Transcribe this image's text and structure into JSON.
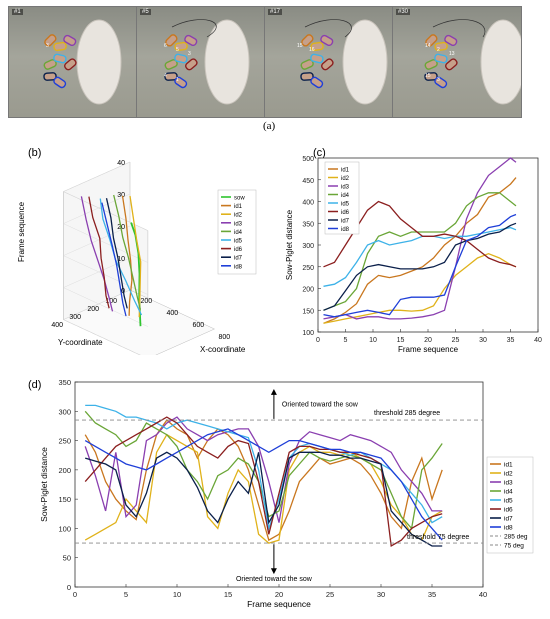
{
  "panel_labels": {
    "a": "(a)",
    "b": "(b)",
    "c": "(c)",
    "d": "(d)"
  },
  "frames": [
    {
      "label": "#1",
      "piglet_labels": [
        "3"
      ]
    },
    {
      "label": "#5",
      "piglet_labels": [
        "6",
        "5",
        "3",
        "4",
        "1"
      ]
    },
    {
      "label": "#17",
      "piglet_labels": [
        "15",
        "16"
      ]
    },
    {
      "label": "#30",
      "piglet_labels": [
        "14",
        "2",
        "13",
        "15",
        "3"
      ]
    }
  ],
  "colors": {
    "sow": "#2fc42f",
    "id1": "#c9771f",
    "id2": "#e0b21a",
    "id3": "#8a3fb0",
    "id4": "#6aa637",
    "id5": "#3db2e8",
    "id6": "#8b1f1f",
    "id7": "#0a1f4a",
    "id8": "#1f3fd8",
    "threshold": "#888888"
  },
  "chart_data": [
    {
      "panel": "(b)",
      "type": "line",
      "projection": "3d",
      "xlabel": "X-coordinate",
      "ylabel": "Y-coordinate",
      "zlabel": "Frame sequence",
      "xticks": [
        "200",
        "400",
        "600",
        "800"
      ],
      "yticks": [
        "100",
        "200",
        "300",
        "400"
      ],
      "zticks": [
        "0",
        "10",
        "20",
        "30",
        "40"
      ],
      "legend_position": "right",
      "series": [
        {
          "name": "sow",
          "color_key": "sow",
          "points": [
            [
              560,
              340,
              36
            ],
            [
              600,
              345,
              33
            ],
            [
              630,
              350,
              28
            ],
            [
              645,
              355,
              22
            ],
            [
              650,
              360,
              15
            ],
            [
              655,
              360,
              10
            ],
            [
              660,
              360,
              6
            ]
          ]
        },
        {
          "name": "id1",
          "color_key": "id1",
          "points": [
            [
              300,
              200,
              36
            ],
            [
              340,
              210,
              30
            ],
            [
              370,
              220,
              24
            ],
            [
              390,
              220,
              18
            ],
            [
              400,
              220,
              12
            ],
            [
              410,
              240,
              6
            ],
            [
              420,
              250,
              2
            ]
          ]
        },
        {
          "name": "id2",
          "color_key": "id2",
          "points": [
            [
              330,
              180,
              36
            ],
            [
              370,
              190,
              30
            ],
            [
              410,
              200,
              24
            ],
            [
              440,
              200,
              18
            ],
            [
              450,
              210,
              12
            ],
            [
              460,
              220,
              6
            ],
            [
              470,
              230,
              2
            ]
          ]
        },
        {
          "name": "id3",
          "color_key": "id3",
          "points": [
            [
              150,
              320,
              36
            ],
            [
              200,
              330,
              30
            ],
            [
              240,
              330,
              24
            ],
            [
              280,
              320,
              18
            ],
            [
              300,
              300,
              12
            ],
            [
              310,
              280,
              6
            ],
            [
              320,
              270,
              2
            ]
          ]
        },
        {
          "name": "id4",
          "color_key": "id4",
          "points": [
            [
              260,
              220,
              36
            ],
            [
              300,
              220,
              30
            ],
            [
              330,
              220,
              24
            ],
            [
              360,
              210,
              18
            ],
            [
              380,
              200,
              12
            ],
            [
              400,
              190,
              6
            ],
            [
              410,
              180,
              2
            ]
          ]
        },
        {
          "name": "id5",
          "color_key": "id5",
          "points": [
            [
              240,
              280,
              36
            ],
            [
              260,
              280,
              30
            ],
            [
              300,
              270,
              24
            ],
            [
              330,
              260,
              18
            ],
            [
              380,
              240,
              12
            ],
            [
              420,
              220,
              6
            ],
            [
              460,
              210,
              2
            ]
          ]
        },
        {
          "name": "id6",
          "color_key": "id6",
          "points": [
            [
              180,
              300,
              36
            ],
            [
              210,
              300,
              30
            ],
            [
              250,
              290,
              24
            ],
            [
              260,
              290,
              18
            ],
            [
              270,
              280,
              12
            ],
            [
              270,
              270,
              6
            ],
            [
              280,
              260,
              2
            ]
          ]
        },
        {
          "name": "id7",
          "color_key": "id7",
          "points": [
            [
              260,
              260,
              36
            ],
            [
              280,
              250,
              30
            ],
            [
              300,
              250,
              24
            ],
            [
              320,
              240,
              18
            ],
            [
              330,
              230,
              12
            ],
            [
              340,
              220,
              6
            ],
            [
              350,
              210,
              2
            ]
          ]
        },
        {
          "name": "id8",
          "color_key": "id8",
          "points": [
            [
              280,
              300,
              36
            ],
            [
              320,
              300,
              30
            ],
            [
              360,
              300,
              24
            ],
            [
              380,
              290,
              18
            ],
            [
              390,
              280,
              12
            ],
            [
              400,
              270,
              6
            ],
            [
              410,
              260,
              2
            ]
          ]
        }
      ]
    },
    {
      "panel": "(c)",
      "type": "line",
      "xlabel": "Frame sequence",
      "ylabel": "Sow-Piglet distance",
      "xlim": [
        0,
        40
      ],
      "ylim": [
        100,
        500
      ],
      "xticks": [
        0,
        5,
        10,
        15,
        20,
        25,
        30,
        35,
        40
      ],
      "yticks": [
        100,
        150,
        200,
        250,
        300,
        350,
        400,
        450,
        500
      ],
      "legend_position": "top-left",
      "x": [
        1,
        3,
        5,
        7,
        9,
        11,
        13,
        15,
        17,
        19,
        21,
        23,
        25,
        27,
        29,
        31,
        33,
        35,
        36
      ],
      "series": [
        {
          "name": "id1",
          "color_key": "id1",
          "values": [
            120,
            130,
            145,
            165,
            210,
            230,
            225,
            230,
            240,
            250,
            270,
            300,
            320,
            350,
            370,
            410,
            420,
            440,
            455
          ]
        },
        {
          "name": "id2",
          "color_key": "id2",
          "values": [
            120,
            125,
            130,
            135,
            140,
            145,
            150,
            150,
            148,
            150,
            160,
            200,
            230,
            250,
            270,
            280,
            270,
            255,
            250
          ]
        },
        {
          "name": "id3",
          "color_key": "id3",
          "values": [
            130,
            135,
            140,
            130,
            135,
            135,
            130,
            130,
            132,
            135,
            140,
            150,
            250,
            360,
            420,
            460,
            480,
            500,
            490
          ]
        },
        {
          "name": "id4",
          "color_key": "id4",
          "values": [
            150,
            160,
            170,
            200,
            280,
            320,
            330,
            320,
            330,
            330,
            330,
            330,
            350,
            390,
            410,
            420,
            420,
            400,
            390
          ]
        },
        {
          "name": "id5",
          "color_key": "id5",
          "values": [
            205,
            210,
            225,
            260,
            300,
            310,
            300,
            305,
            310,
            320,
            320,
            315,
            320,
            320,
            325,
            330,
            335,
            340,
            335
          ]
        },
        {
          "name": "id6",
          "color_key": "id6",
          "values": [
            250,
            260,
            300,
            340,
            380,
            400,
            390,
            360,
            340,
            320,
            320,
            325,
            320,
            310,
            290,
            270,
            260,
            255,
            250
          ]
        },
        {
          "name": "id7",
          "color_key": "id7",
          "values": [
            150,
            160,
            195,
            230,
            250,
            255,
            250,
            245,
            245,
            245,
            250,
            260,
            300,
            310,
            315,
            325,
            330,
            345,
            350
          ]
        },
        {
          "name": "id8",
          "color_key": "id8",
          "values": [
            140,
            135,
            140,
            145,
            150,
            145,
            140,
            175,
            180,
            180,
            180,
            185,
            250,
            310,
            320,
            340,
            345,
            365,
            370
          ]
        }
      ]
    },
    {
      "panel": "(d)",
      "type": "line",
      "xlabel": "Frame sequence",
      "ylabel": "Sow-Piglet distance",
      "xlim": [
        0,
        40
      ],
      "ylim": [
        0,
        350
      ],
      "xticks": [
        0,
        5,
        10,
        15,
        20,
        25,
        30,
        35,
        40
      ],
      "yticks": [
        0,
        50,
        100,
        150,
        200,
        250,
        300,
        350
      ],
      "legend_position": "right",
      "thresholds": [
        {
          "name": "285 deg",
          "value": 285,
          "label": "threshold 285 degree"
        },
        {
          "name": "75 deg",
          "value": 75,
          "label": "threshold 75 degree"
        }
      ],
      "annotations": {
        "up": "Oriented toward the sow",
        "down": "Oriented toward the sow"
      },
      "x": [
        1,
        2,
        3,
        4,
        5,
        6,
        7,
        8,
        9,
        10,
        11,
        12,
        13,
        14,
        15,
        16,
        17,
        18,
        19,
        20,
        21,
        22,
        23,
        24,
        25,
        26,
        27,
        28,
        29,
        30,
        31,
        32,
        33,
        34,
        35,
        36
      ],
      "series": [
        {
          "name": "id1",
          "color_key": "id1",
          "values": [
            260,
            230,
            180,
            150,
            130,
            115,
            200,
            260,
            285,
            270,
            260,
            220,
            250,
            270,
            260,
            240,
            200,
            140,
            80,
            90,
            130,
            180,
            200,
            220,
            210,
            215,
            220,
            210,
            190,
            160,
            120,
            100,
            180,
            220,
            150,
            200
          ]
        },
        {
          "name": "id2",
          "color_key": "id2",
          "values": [
            80,
            90,
            100,
            110,
            150,
            130,
            110,
            230,
            260,
            250,
            240,
            230,
            120,
            100,
            160,
            200,
            180,
            90,
            75,
            80,
            200,
            230,
            240,
            230,
            230,
            225,
            230,
            220,
            210,
            180,
            140,
            120,
            90,
            80,
            120,
            130
          ]
        },
        {
          "name": "id3",
          "color_key": "id3",
          "values": [
            240,
            190,
            130,
            230,
            120,
            140,
            250,
            260,
            280,
            290,
            270,
            260,
            250,
            260,
            265,
            270,
            270,
            240,
            180,
            110,
            210,
            250,
            265,
            260,
            255,
            250,
            260,
            255,
            250,
            240,
            230,
            200,
            180,
            160,
            130,
            130
          ]
        },
        {
          "name": "id4",
          "color_key": "id4",
          "values": [
            300,
            280,
            270,
            260,
            240,
            250,
            280,
            270,
            260,
            240,
            200,
            180,
            150,
            190,
            200,
            220,
            210,
            180,
            120,
            130,
            190,
            210,
            230,
            220,
            215,
            220,
            225,
            220,
            210,
            200,
            160,
            120,
            100,
            200,
            220,
            245
          ]
        },
        {
          "name": "id5",
          "color_key": "id5",
          "values": [
            310,
            310,
            305,
            300,
            290,
            290,
            285,
            280,
            270,
            280,
            285,
            280,
            275,
            270,
            265,
            260,
            255,
            200,
            100,
            150,
            220,
            240,
            245,
            240,
            235,
            230,
            225,
            230,
            220,
            210,
            200,
            180,
            160,
            140,
            110,
            120
          ]
        },
        {
          "name": "id6",
          "color_key": "id6",
          "values": [
            180,
            200,
            220,
            240,
            250,
            260,
            270,
            280,
            290,
            280,
            260,
            240,
            230,
            220,
            240,
            250,
            245,
            180,
            90,
            160,
            230,
            240,
            240,
            235,
            235,
            230,
            230,
            225,
            220,
            210,
            70,
            80,
            100,
            110,
            120,
            125
          ]
        },
        {
          "name": "id7",
          "color_key": "id7",
          "values": [
            220,
            215,
            210,
            200,
            140,
            120,
            160,
            220,
            230,
            220,
            200,
            170,
            130,
            110,
            150,
            180,
            160,
            230,
            110,
            140,
            220,
            230,
            230,
            230,
            225,
            225,
            220,
            220,
            215,
            210,
            130,
            110,
            90,
            80,
            70,
            70
          ]
        },
        {
          "name": "id8",
          "color_key": "id8",
          "values": [
            250,
            240,
            230,
            220,
            210,
            205,
            200,
            210,
            220,
            230,
            240,
            250,
            260,
            265,
            270,
            260,
            250,
            240,
            230,
            240,
            250,
            250,
            245,
            240,
            235,
            235,
            230,
            230,
            225,
            220,
            200,
            180,
            150,
            120,
            100,
            80
          ]
        }
      ]
    }
  ]
}
